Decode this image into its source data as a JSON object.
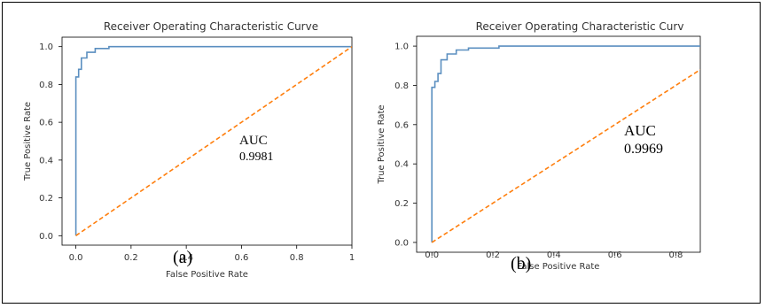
{
  "figure": {
    "labels": [
      "(a)",
      "(b)"
    ]
  },
  "chart_data": [
    {
      "type": "line",
      "title": "Receiver Operating Characteristic Curve",
      "xlabel": "False Positive Rate",
      "ylabel": "True Positive Rate",
      "xlim": [
        -0.05,
        1.0
      ],
      "ylim": [
        -0.05,
        1.05
      ],
      "xticks": [
        "0.0",
        "0.2",
        "0.4",
        "0.6",
        "0.8",
        "1"
      ],
      "yticks": [
        "0.0",
        "0.2",
        "0.4",
        "0.6",
        "0.8",
        "1.0"
      ],
      "annotation": {
        "label": "AUC",
        "value": "0.9981"
      },
      "grid": false,
      "series": [
        {
          "color": "#5b8fc0",
          "style": "solid",
          "x": [
            0.0,
            0.0,
            0.01,
            0.01,
            0.02,
            0.02,
            0.04,
            0.04,
            0.07,
            0.07,
            0.12,
            0.12,
            1.0
          ],
          "y": [
            0.0,
            0.84,
            0.84,
            0.88,
            0.88,
            0.94,
            0.94,
            0.97,
            0.97,
            0.99,
            0.99,
            1.0,
            1.0
          ]
        },
        {
          "color": "#ff7f0e",
          "style": "dashed",
          "x": [
            0.0,
            1.0
          ],
          "y": [
            0.0,
            1.0
          ]
        }
      ]
    },
    {
      "type": "line",
      "title": "Receiver Operating Characteristic Curv",
      "xlabel": "False Positive Rate",
      "ylabel": "True Positive Rate",
      "xlim": [
        -0.05,
        0.88
      ],
      "ylim": [
        -0.05,
        1.05
      ],
      "xticks": [
        "0.0",
        "0.2",
        "0.4",
        "0.6",
        "0.8"
      ],
      "yticks": [
        "0.0",
        "0.2",
        "0.4",
        "0.6",
        "0.8",
        "1.0"
      ],
      "annotation": {
        "label": "AUC",
        "value": "0.9969"
      },
      "grid": false,
      "series": [
        {
          "color": "#5b8fc0",
          "style": "solid",
          "x": [
            0.0,
            0.0,
            0.01,
            0.01,
            0.02,
            0.02,
            0.03,
            0.03,
            0.05,
            0.05,
            0.08,
            0.08,
            0.12,
            0.12,
            0.22,
            0.22,
            0.88
          ],
          "y": [
            0.0,
            0.79,
            0.79,
            0.82,
            0.82,
            0.86,
            0.86,
            0.93,
            0.93,
            0.96,
            0.96,
            0.98,
            0.98,
            0.99,
            0.99,
            1.0,
            1.0
          ]
        },
        {
          "color": "#ff7f0e",
          "style": "dashed",
          "x": [
            0.0,
            0.88
          ],
          "y": [
            0.0,
            0.88
          ]
        }
      ]
    }
  ]
}
